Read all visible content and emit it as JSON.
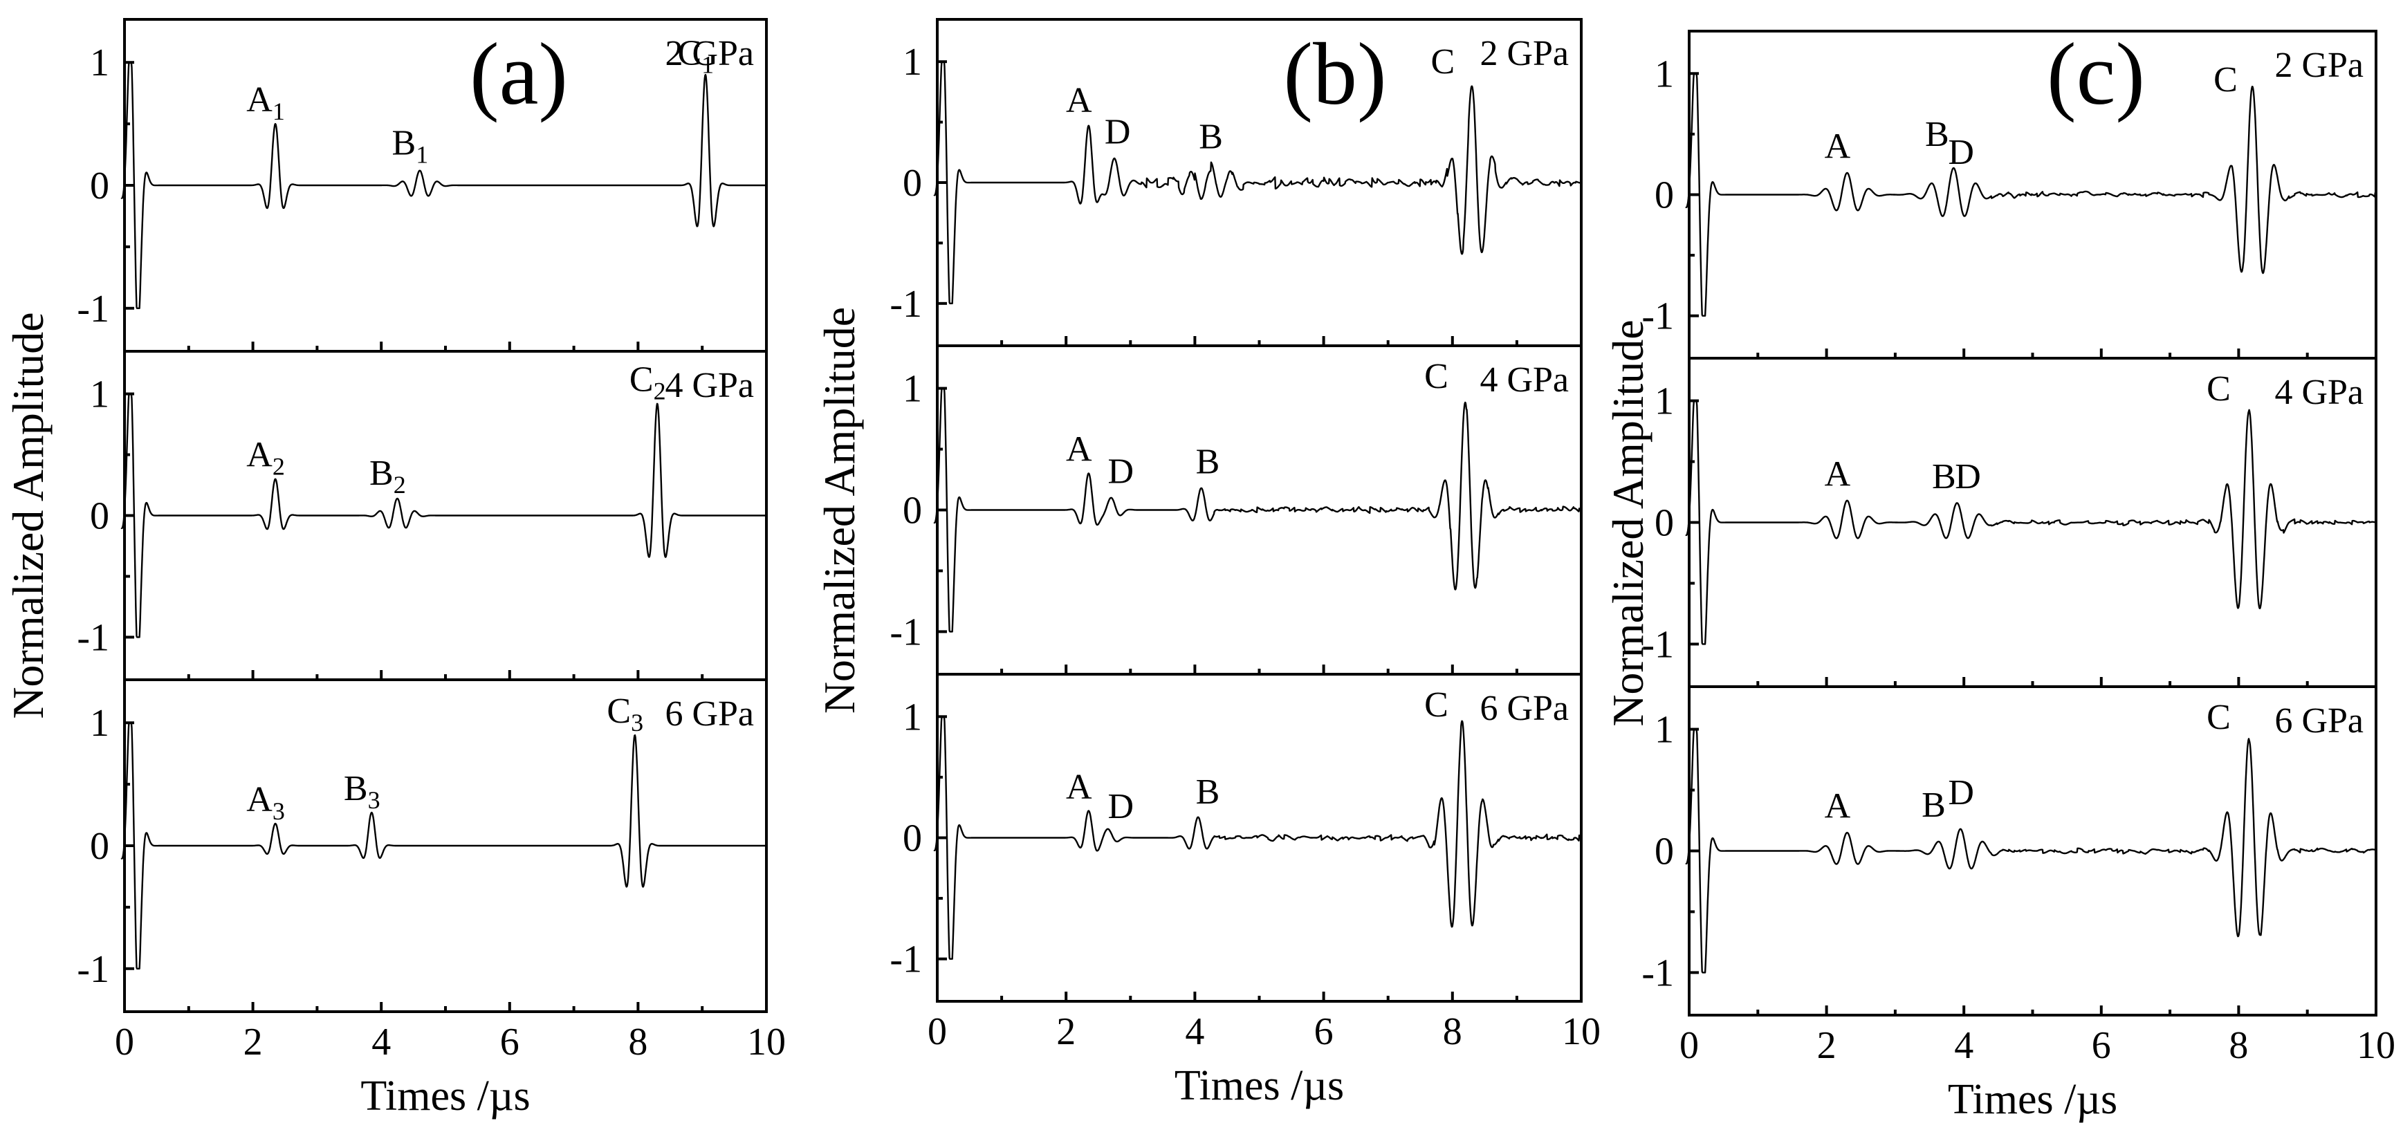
{
  "chart_data": [
    {
      "panel": "(a)",
      "type": "line",
      "xlabel": "Times /µs",
      "ylabel": "Normalized Amplitude",
      "xlim": [
        0,
        10
      ],
      "ylim": [
        -1.35,
        1.35
      ],
      "xticks": [
        "0",
        "2",
        "4",
        "6",
        "8",
        "10"
      ],
      "yticks": [
        "-1",
        "0",
        "1"
      ],
      "subplots": [
        {
          "pressure": "2 GPa",
          "series": [
            {
              "kind": "excitation",
              "t0": 0.15,
              "amp": 1.0,
              "freq": 3.2,
              "width": 0.09
            },
            {
              "kind": "packet",
              "t0": 2.35,
              "amp": 0.5,
              "freq": 3.2,
              "width": 0.1
            },
            {
              "kind": "packet",
              "t0": 4.6,
              "amp": 0.12,
              "freq": 3.5,
              "width": 0.17
            },
            {
              "kind": "packet",
              "t0": 9.05,
              "amp": 0.9,
              "freq": 3.2,
              "width": 0.1
            }
          ],
          "annotations": [
            {
              "label": "A",
              "sub": "1",
              "x": 2.35,
              "y": 0.5
            },
            {
              "label": "B",
              "sub": "1",
              "x": 4.6,
              "y": 0.15
            },
            {
              "label": "C",
              "sub": "1",
              "x": 9.05,
              "y": 0.88
            }
          ]
        },
        {
          "pressure": "4 GPa",
          "series": [
            {
              "kind": "excitation",
              "t0": 0.15,
              "amp": 1.0,
              "freq": 3.2,
              "width": 0.09
            },
            {
              "kind": "packet",
              "t0": 2.35,
              "amp": 0.3,
              "freq": 3.2,
              "width": 0.1
            },
            {
              "kind": "packet",
              "t0": 4.25,
              "amp": 0.14,
              "freq": 3.5,
              "width": 0.17
            },
            {
              "kind": "packet",
              "t0": 8.3,
              "amp": 0.92,
              "freq": 3.2,
              "width": 0.1
            }
          ],
          "annotations": [
            {
              "label": "A",
              "sub": "2",
              "x": 2.35,
              "y": 0.3
            },
            {
              "label": "B",
              "sub": "2",
              "x": 4.25,
              "y": 0.15
            },
            {
              "label": "C",
              "sub": "2",
              "x": 8.3,
              "y": 0.92
            }
          ]
        },
        {
          "pressure": "6 GPa",
          "series": [
            {
              "kind": "excitation",
              "t0": 0.15,
              "amp": 1.0,
              "freq": 3.2,
              "width": 0.09
            },
            {
              "kind": "packet",
              "t0": 2.35,
              "amp": 0.18,
              "freq": 3.2,
              "width": 0.1
            },
            {
              "kind": "packet",
              "t0": 3.85,
              "amp": 0.27,
              "freq": 3.2,
              "width": 0.1
            },
            {
              "kind": "packet",
              "t0": 7.95,
              "amp": 0.9,
              "freq": 3.2,
              "width": 0.1
            }
          ],
          "annotations": [
            {
              "label": "A",
              "sub": "3",
              "x": 2.35,
              "y": 0.18
            },
            {
              "label": "B",
              "sub": "3",
              "x": 3.85,
              "y": 0.27
            },
            {
              "label": "C",
              "sub": "3",
              "x": 7.95,
              "y": 0.9
            }
          ]
        }
      ]
    },
    {
      "panel": "(b)",
      "type": "line",
      "xlabel": "Times /µs",
      "ylabel": "Normalized Amplitude",
      "xlim": [
        0,
        10
      ],
      "ylim": [
        -1.35,
        1.35
      ],
      "xticks": [
        "0",
        "2",
        "4",
        "6",
        "8",
        "10"
      ],
      "yticks": [
        "-1",
        "0",
        "1"
      ],
      "subplots": [
        {
          "pressure": "2 GPa",
          "series": [
            {
              "kind": "excitation",
              "t0": 0.15,
              "amp": 1.0,
              "freq": 3.2,
              "width": 0.09
            },
            {
              "kind": "packet",
              "t0": 2.35,
              "amp": 0.47,
              "freq": 3.2,
              "width": 0.1
            },
            {
              "kind": "packet",
              "t0": 2.75,
              "amp": 0.2,
              "freq": 3.0,
              "width": 0.14
            },
            {
              "kind": "packet",
              "t0": 4.25,
              "amp": 0.13,
              "freq": 3.3,
              "width": 0.38
            },
            {
              "kind": "packet",
              "t0": 8.3,
              "amp": 0.8,
              "freq": 3.0,
              "width": 0.2
            },
            {
              "kind": "noise",
              "from": 3.0,
              "to": 10.0,
              "amp": 0.05
            }
          ],
          "annotations": [
            {
              "label": "A",
              "sub": "",
              "x": 2.35,
              "y": 0.48
            },
            {
              "label": "D",
              "sub": "",
              "x": 2.95,
              "y": 0.22
            },
            {
              "label": "B",
              "sub": "",
              "x": 4.4,
              "y": 0.18
            },
            {
              "label": "C",
              "sub": "",
              "x": 8.0,
              "y": 0.8
            }
          ]
        },
        {
          "pressure": "4 GPa",
          "series": [
            {
              "kind": "excitation",
              "t0": 0.15,
              "amp": 1.0,
              "freq": 3.2,
              "width": 0.09
            },
            {
              "kind": "packet",
              "t0": 2.35,
              "amp": 0.3,
              "freq": 3.2,
              "width": 0.1
            },
            {
              "kind": "packet",
              "t0": 2.7,
              "amp": 0.1,
              "freq": 3.0,
              "width": 0.12
            },
            {
              "kind": "packet",
              "t0": 4.1,
              "amp": 0.18,
              "freq": 3.2,
              "width": 0.12
            },
            {
              "kind": "packet",
              "t0": 8.2,
              "amp": 0.9,
              "freq": 3.0,
              "width": 0.2
            },
            {
              "kind": "noise",
              "from": 4.3,
              "to": 10.0,
              "amp": 0.03
            }
          ],
          "annotations": [
            {
              "label": "A",
              "sub": "",
              "x": 2.35,
              "y": 0.3
            },
            {
              "label": "D",
              "sub": "",
              "x": 3.0,
              "y": 0.12
            },
            {
              "label": "B",
              "sub": "",
              "x": 4.35,
              "y": 0.2
            },
            {
              "label": "C",
              "sub": "",
              "x": 7.9,
              "y": 0.9
            }
          ]
        },
        {
          "pressure": "6 GPa",
          "series": [
            {
              "kind": "excitation",
              "t0": 0.15,
              "amp": 1.0,
              "freq": 3.2,
              "width": 0.09
            },
            {
              "kind": "packet",
              "t0": 2.35,
              "amp": 0.22,
              "freq": 3.2,
              "width": 0.1
            },
            {
              "kind": "packet",
              "t0": 2.65,
              "amp": 0.07,
              "freq": 3.0,
              "width": 0.12
            },
            {
              "kind": "packet",
              "t0": 4.05,
              "amp": 0.17,
              "freq": 3.2,
              "width": 0.13
            },
            {
              "kind": "packet",
              "t0": 8.15,
              "amp": 0.95,
              "freq": 3.0,
              "width": 0.22
            },
            {
              "kind": "noise",
              "from": 4.3,
              "to": 10.0,
              "amp": 0.03
            }
          ],
          "annotations": [
            {
              "label": "A",
              "sub": "",
              "x": 2.35,
              "y": 0.22
            },
            {
              "label": "D",
              "sub": "",
              "x": 3.0,
              "y": 0.06
            },
            {
              "label": "B",
              "sub": "",
              "x": 4.35,
              "y": 0.18
            },
            {
              "label": "C",
              "sub": "",
              "x": 7.9,
              "y": 0.9
            }
          ]
        }
      ]
    },
    {
      "panel": "(c)",
      "type": "line",
      "xlabel": "Times /µs",
      "ylabel": "Normalized Amplitude",
      "xlim": [
        0,
        10
      ],
      "ylim": [
        -1.35,
        1.35
      ],
      "xticks": [
        "0",
        "2",
        "4",
        "6",
        "8",
        "10"
      ],
      "yticks": [
        "-1",
        "0",
        "1"
      ],
      "subplots": [
        {
          "pressure": "2 GPa",
          "series": [
            {
              "kind": "excitation",
              "t0": 0.15,
              "amp": 1.0,
              "freq": 3.2,
              "width": 0.09
            },
            {
              "kind": "packet",
              "t0": 2.3,
              "amp": 0.18,
              "freq": 3.0,
              "width": 0.2
            },
            {
              "kind": "packet",
              "t0": 3.85,
              "amp": 0.22,
              "freq": 3.0,
              "width": 0.25
            },
            {
              "kind": "packet",
              "t0": 8.2,
              "amp": 0.88,
              "freq": 3.0,
              "width": 0.2
            },
            {
              "kind": "noise",
              "from": 4.4,
              "to": 10.0,
              "amp": 0.03
            }
          ],
          "annotations": [
            {
              "label": "A",
              "sub": "",
              "x": 2.3,
              "y": 0.2
            },
            {
              "label": "B",
              "sub": "",
              "x": 3.75,
              "y": 0.3
            },
            {
              "label": "D",
              "sub": "",
              "x": 4.1,
              "y": 0.15
            },
            {
              "label": "C",
              "sub": "",
              "x": 7.95,
              "y": 0.75
            }
          ]
        },
        {
          "pressure": "4 GPa",
          "series": [
            {
              "kind": "excitation",
              "t0": 0.15,
              "amp": 1.0,
              "freq": 3.2,
              "width": 0.09
            },
            {
              "kind": "packet",
              "t0": 2.3,
              "amp": 0.18,
              "freq": 3.0,
              "width": 0.2
            },
            {
              "kind": "packet",
              "t0": 3.9,
              "amp": 0.16,
              "freq": 3.0,
              "width": 0.25
            },
            {
              "kind": "packet",
              "t0": 8.15,
              "amp": 0.92,
              "freq": 3.0,
              "width": 0.22
            },
            {
              "kind": "noise",
              "from": 4.4,
              "to": 10.0,
              "amp": 0.025
            }
          ],
          "annotations": [
            {
              "label": "A",
              "sub": "",
              "x": 2.3,
              "y": 0.2
            },
            {
              "label": "B",
              "sub": "",
              "x": 3.85,
              "y": 0.18
            },
            {
              "label": "D",
              "sub": "",
              "x": 4.2,
              "y": 0.18
            },
            {
              "label": "C",
              "sub": "",
              "x": 7.85,
              "y": 0.9
            }
          ]
        },
        {
          "pressure": "6 GPa",
          "series": [
            {
              "kind": "excitation",
              "t0": 0.15,
              "amp": 1.0,
              "freq": 3.2,
              "width": 0.09
            },
            {
              "kind": "packet",
              "t0": 2.3,
              "amp": 0.15,
              "freq": 3.0,
              "width": 0.2
            },
            {
              "kind": "packet",
              "t0": 3.95,
              "amp": 0.18,
              "freq": 3.0,
              "width": 0.25
            },
            {
              "kind": "packet",
              "t0": 8.15,
              "amp": 0.92,
              "freq": 3.0,
              "width": 0.22
            },
            {
              "kind": "noise",
              "from": 4.4,
              "to": 10.0,
              "amp": 0.025
            }
          ],
          "annotations": [
            {
              "label": "A",
              "sub": "",
              "x": 2.3,
              "y": 0.17
            },
            {
              "label": "B",
              "sub": "",
              "x": 3.7,
              "y": 0.18
            },
            {
              "label": "D",
              "sub": "",
              "x": 4.1,
              "y": 0.28
            },
            {
              "label": "C",
              "sub": "",
              "x": 7.85,
              "y": 0.9
            }
          ]
        }
      ]
    }
  ]
}
